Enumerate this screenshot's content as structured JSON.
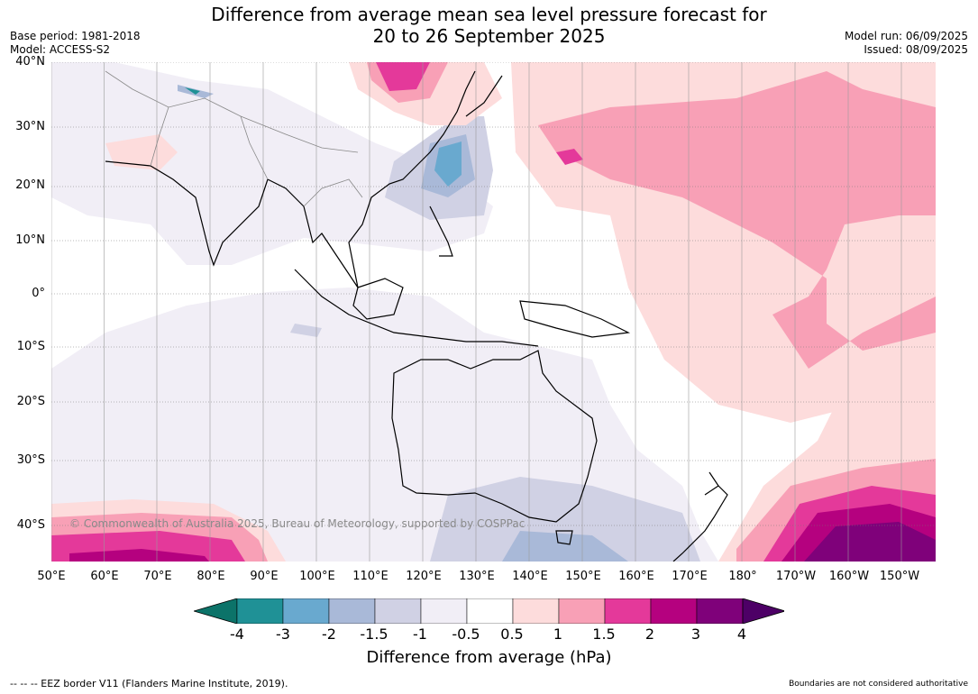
{
  "title_line1": "Difference from average mean sea level pressure forecast for",
  "title_line2": "20 to 26 September 2025",
  "base_period": "Base period: 1981-2018",
  "model": "Model: ACCESS-S2",
  "model_run": "Model run: 06/09/2025",
  "issued": "Issued: 08/09/2025",
  "copyright": "© Commonwealth of Australia 2025, Bureau of Meteorology, supported by COSPPac",
  "eez_note": "--  --  -- EEZ border V11 (Flanders Marine Institute, 2019).",
  "boundaries_note": "Boundaries are not considered authoritative",
  "colorbar_label": "Difference from average (hPa)",
  "lat_labels": [
    "40°N",
    "30°N",
    "20°N",
    "10°N",
    "0°",
    "10°S",
    "20°S",
    "30°S",
    "40°S"
  ],
  "lon_labels": [
    "50°E",
    "60°E",
    "70°E",
    "80°E",
    "90°E",
    "100°E",
    "110°E",
    "120°E",
    "130°E",
    "140°E",
    "150°E",
    "160°E",
    "170°E",
    "180°",
    "170°W",
    "160°W",
    "150°W"
  ],
  "colorbar": {
    "ticks": [
      "-4",
      "-3",
      "-2",
      "-1.5",
      "-1",
      "-0.5",
      "0.5",
      "1",
      "1.5",
      "2",
      "3",
      "4"
    ],
    "colors": [
      "#0c7369",
      "#1f9196",
      "#69a9cf",
      "#a9b9d8",
      "#d0d1e4",
      "#f1eef6",
      "#ffffff",
      "#fddcdc",
      "#f8a0b6",
      "#e4399a",
      "#b5017f",
      "#7f017a",
      "#4d0066"
    ]
  }
}
